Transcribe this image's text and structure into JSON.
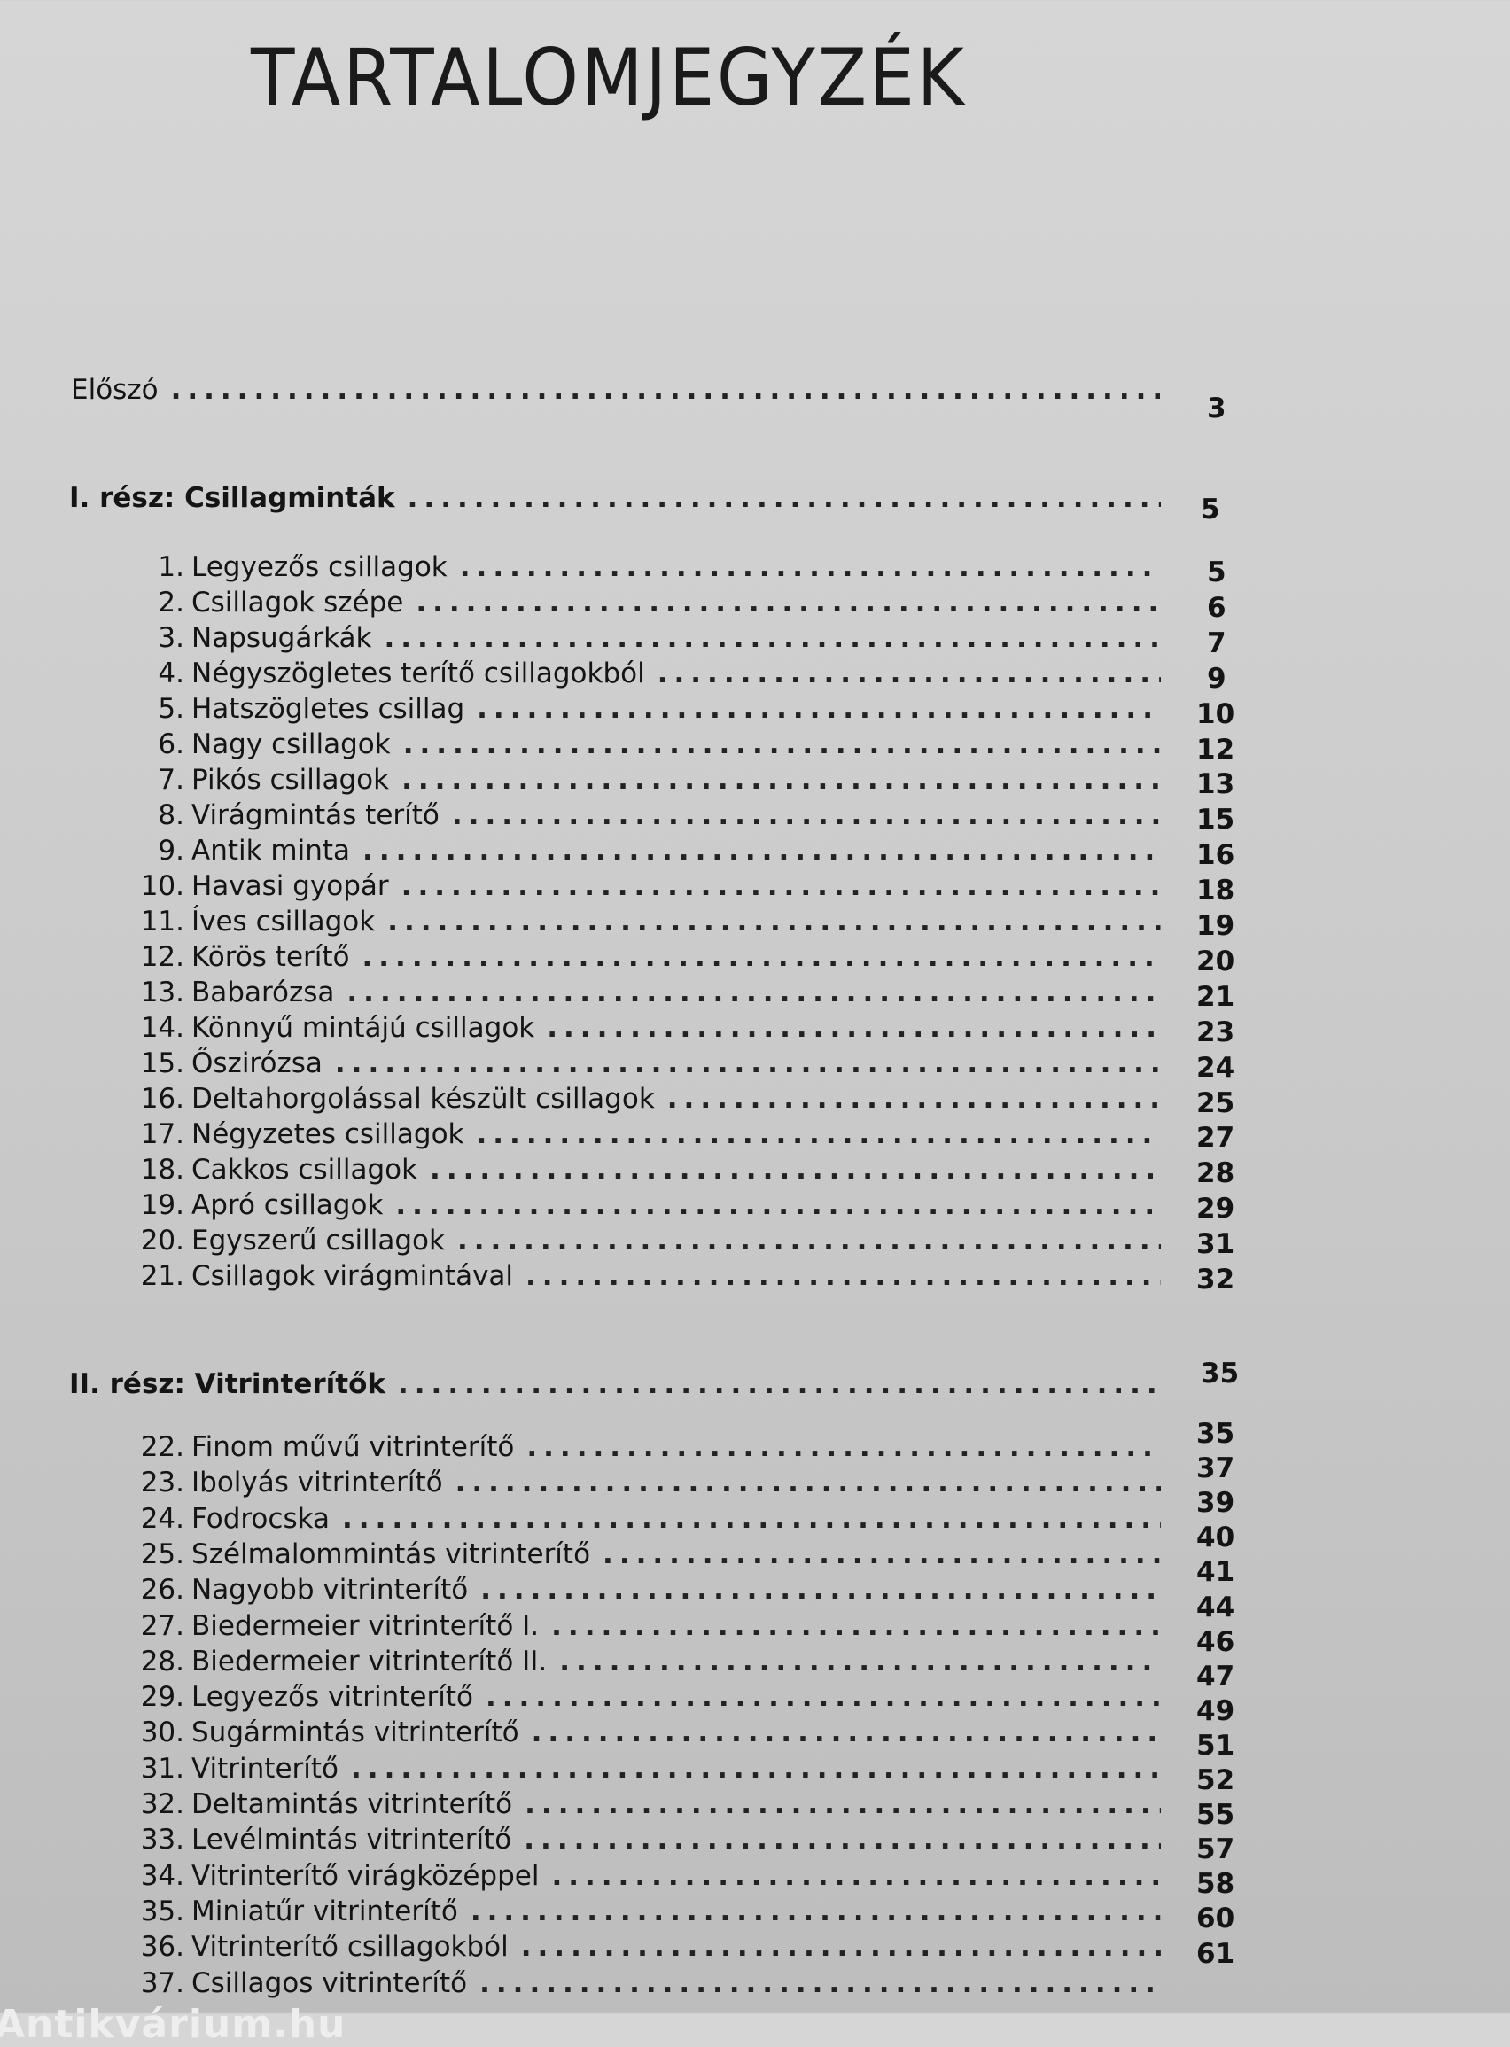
{
  "title": "TARTALOMJEGYZÉK",
  "preface": {
    "label": "Előszó",
    "page": "3"
  },
  "parts": [
    {
      "label": "I. rész: Csillagminták",
      "page": "5",
      "entries": [
        {
          "num": "1.",
          "label": "Legyezős csillagok",
          "page": "5"
        },
        {
          "num": "2.",
          "label": "Csillagok szépe",
          "page": "6"
        },
        {
          "num": "3.",
          "label": "Napsugárkák",
          "page": "7"
        },
        {
          "num": "4.",
          "label": "Négyszögletes terítő csillagokból",
          "page": "9"
        },
        {
          "num": "5.",
          "label": "Hatszögletes csillag",
          "page": "10"
        },
        {
          "num": "6.",
          "label": "Nagy csillagok",
          "page": "12"
        },
        {
          "num": "7.",
          "label": "Pikós csillagok",
          "page": "13"
        },
        {
          "num": "8.",
          "label": "Virágmintás terítő",
          "page": "15"
        },
        {
          "num": "9.",
          "label": "Antik minta",
          "page": "16"
        },
        {
          "num": "10.",
          "label": "Havasi gyopár",
          "page": "18"
        },
        {
          "num": "11.",
          "label": "Íves csillagok",
          "page": "19"
        },
        {
          "num": "12.",
          "label": "Körös terítő",
          "page": "20"
        },
        {
          "num": "13.",
          "label": "Babarózsa",
          "page": "21"
        },
        {
          "num": "14.",
          "label": "Könnyű mintájú csillagok",
          "page": "23"
        },
        {
          "num": "15.",
          "label": "Őszirózsa",
          "page": "24"
        },
        {
          "num": "16.",
          "label": "Deltahorgolással készült csillagok",
          "page": "25"
        },
        {
          "num": "17.",
          "label": "Négyzetes csillagok",
          "page": "27"
        },
        {
          "num": "18.",
          "label": "Cakkos csillagok",
          "page": "28"
        },
        {
          "num": "19.",
          "label": "Apró csillagok",
          "page": "29"
        },
        {
          "num": "20.",
          "label": "Egyszerű csillagok",
          "page": "31"
        },
        {
          "num": "21.",
          "label": "Csillagok virágmintával",
          "page": "32"
        }
      ]
    },
    {
      "label": "II. rész: Vitrinterítők",
      "page": "35",
      "entries": [
        {
          "num": "22.",
          "label": "Finom művű vitrinterítő",
          "page": "35"
        },
        {
          "num": "23.",
          "label": "Ibolyás vitrinterítő",
          "page": "37"
        },
        {
          "num": "24.",
          "label": "Fodrocska",
          "page": "39"
        },
        {
          "num": "25.",
          "label": "Szélmalommintás vitrinterítő",
          "page": "40"
        },
        {
          "num": "26.",
          "label": "Nagyobb vitrinterítő",
          "page": "41"
        },
        {
          "num": "27.",
          "label": "Biedermeier vitrinterítő I.",
          "page": "44"
        },
        {
          "num": "28.",
          "label": "Biedermeier vitrinterítő II.",
          "page": "46"
        },
        {
          "num": "29.",
          "label": "Legyezős vitrinterítő",
          "page": "47"
        },
        {
          "num": "30.",
          "label": "Sugármintás vitrinterítő",
          "page": "49"
        },
        {
          "num": "31.",
          "label": "Vitrinterítő",
          "page": "51"
        },
        {
          "num": "32.",
          "label": "Deltamintás vitrinterítő",
          "page": "52"
        },
        {
          "num": "33.",
          "label": "Levélmintás vitrinterítő",
          "page": "55"
        },
        {
          "num": "34.",
          "label": "Vitrinterítő virágközéppel",
          "page": "57"
        },
        {
          "num": "35.",
          "label": "Miniatűr vitrinterítő",
          "page": "58"
        },
        {
          "num": "36.",
          "label": "Vitrinterítő csillagokból",
          "page": "60"
        },
        {
          "num": "37.",
          "label": "Csillagos vitrinterítő",
          "page": "61"
        }
      ]
    }
  ],
  "watermark": "Antikvárium.hu"
}
